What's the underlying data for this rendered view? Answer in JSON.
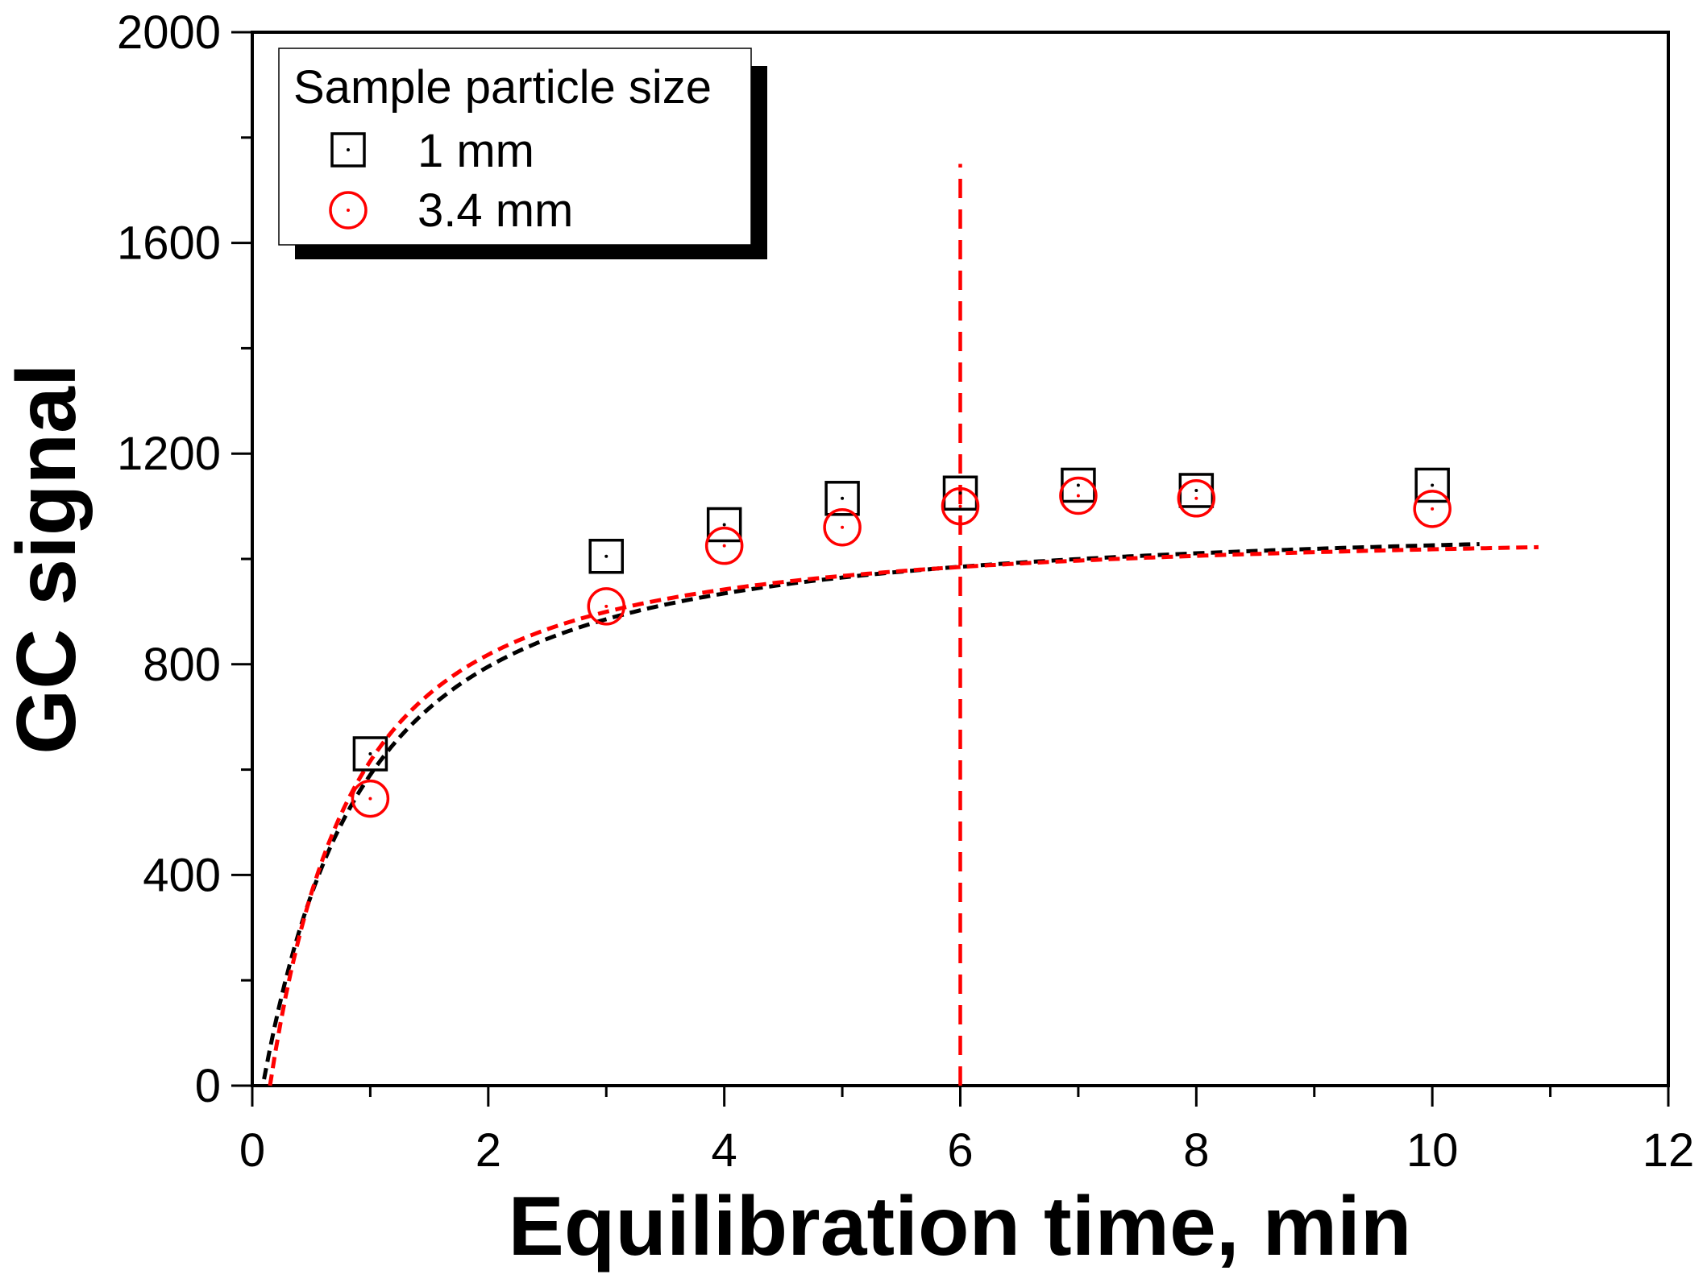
{
  "chart_data": {
    "type": "scatter",
    "title": "",
    "xlabel": "Equilibration time, min",
    "ylabel": "GC signal",
    "xlim": [
      0,
      12
    ],
    "ylim": [
      0,
      2000
    ],
    "x_ticks": [
      "0",
      "2",
      "4",
      "6",
      "8",
      "10",
      "12"
    ],
    "y_ticks": [
      "0",
      "400",
      "800",
      "1200",
      "1600",
      "2000"
    ],
    "grid": false,
    "legend": {
      "title": "Sample particle size",
      "position": "top-left"
    },
    "series": [
      {
        "name": "1 mm",
        "marker": "square",
        "color": "#000000",
        "x": [
          1,
          3,
          4,
          5,
          6,
          7,
          8,
          10
        ],
        "y": [
          630,
          1005,
          1065,
          1115,
          1125,
          1140,
          1130,
          1140
        ],
        "fit": {
          "style": "dashed",
          "x_start": 0.1,
          "x_end": 10.4,
          "plateau": 1165,
          "k": 0.33,
          "x0": 0.09
        }
      },
      {
        "name": "3.4 mm",
        "marker": "circle",
        "color": "#ff0000",
        "x": [
          1,
          3,
          4,
          5,
          6,
          7,
          8,
          10
        ],
        "y": [
          545,
          910,
          1025,
          1060,
          1100,
          1120,
          1115,
          1095
        ],
        "fit": {
          "style": "dashed",
          "x_start": 0.15,
          "x_end": 10.9,
          "plateau": 1145,
          "k": 0.4,
          "x0": 0.15
        }
      }
    ],
    "annotations": [
      {
        "type": "vline",
        "x": 6,
        "y_from": 0,
        "y_to": 1750,
        "color": "#ff0000",
        "style": "dashed"
      }
    ]
  }
}
